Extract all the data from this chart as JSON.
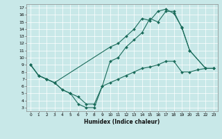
{
  "xlabel": "Humidex (Indice chaleur)",
  "bg_color": "#c8e8e8",
  "grid_color": "#ffffff",
  "line_color": "#1a6b5a",
  "xlim": [
    -0.5,
    23.5
  ],
  "ylim": [
    2.5,
    17.5
  ],
  "xticks": [
    0,
    1,
    2,
    3,
    4,
    5,
    6,
    7,
    8,
    9,
    10,
    11,
    12,
    13,
    14,
    15,
    16,
    17,
    18,
    19,
    20,
    21,
    22,
    23
  ],
  "yticks": [
    3,
    4,
    5,
    6,
    7,
    8,
    9,
    10,
    11,
    12,
    13,
    14,
    15,
    16,
    17
  ],
  "line1_x": [
    0,
    1,
    2,
    3,
    10,
    11,
    12,
    13,
    14,
    15,
    16,
    17,
    18,
    19,
    20,
    22,
    23
  ],
  "line1_y": [
    9.0,
    7.5,
    7.0,
    6.5,
    11.5,
    12.0,
    13.0,
    14.0,
    15.5,
    15.2,
    16.5,
    16.8,
    16.2,
    14.3,
    11.0,
    8.5,
    8.5
  ],
  "line2_x": [
    0,
    1,
    2,
    3,
    4,
    5,
    6,
    7,
    8,
    9,
    10,
    11,
    12,
    13,
    14,
    15,
    16,
    17,
    18,
    19,
    20,
    22,
    23
  ],
  "line2_y": [
    9.0,
    7.5,
    7.0,
    6.5,
    5.5,
    5.0,
    4.5,
    3.5,
    3.5,
    6.0,
    9.5,
    10.0,
    11.5,
    12.5,
    13.5,
    15.5,
    15.0,
    16.5,
    16.5,
    14.2,
    11.0,
    8.5,
    8.5
  ],
  "line3_x": [
    0,
    1,
    2,
    3,
    4,
    5,
    6,
    7,
    8,
    9,
    10,
    11,
    12,
    13,
    14,
    15,
    16,
    17,
    18,
    19,
    20,
    21,
    22,
    23
  ],
  "line3_y": [
    9.0,
    7.5,
    7.0,
    6.5,
    5.5,
    5.0,
    3.5,
    3.0,
    3.0,
    6.0,
    6.5,
    7.0,
    7.5,
    8.0,
    8.5,
    8.7,
    9.0,
    9.5,
    9.5,
    8.0,
    8.0,
    8.3,
    8.5,
    8.5
  ]
}
